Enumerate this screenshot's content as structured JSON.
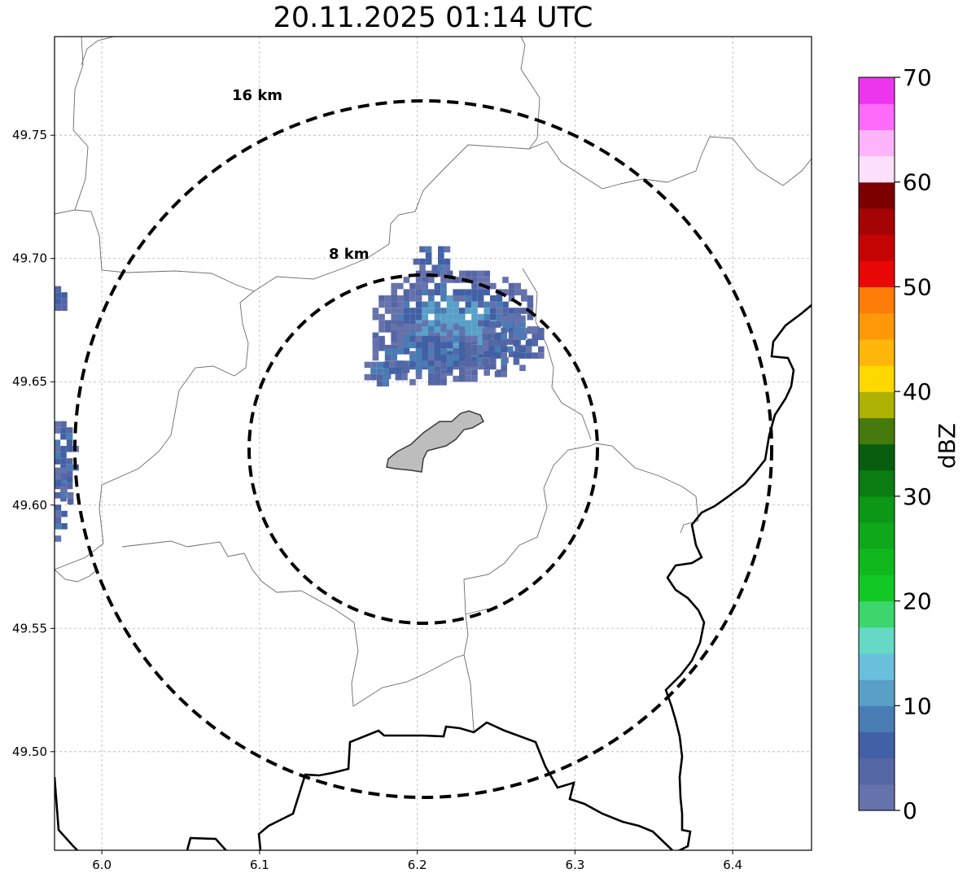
{
  "title": "20.11.2025 01:14 UTC",
  "map": {
    "lon_range": [
      5.97,
      6.45
    ],
    "lat_range": [
      49.46,
      49.79
    ],
    "grid": true,
    "x_ticks": [
      {
        "value": 6.0,
        "label": "6.0"
      },
      {
        "value": 6.1,
        "label": "6.1"
      },
      {
        "value": 6.2,
        "label": "6.2"
      },
      {
        "value": 6.3,
        "label": "6.3"
      },
      {
        "value": 6.4,
        "label": "6.4"
      }
    ],
    "y_ticks": [
      {
        "value": 49.5,
        "label": "49.50"
      },
      {
        "value": 49.55,
        "label": "49.55"
      },
      {
        "value": 49.6,
        "label": "49.60"
      },
      {
        "value": 49.65,
        "label": "49.65"
      },
      {
        "value": 49.7,
        "label": "49.70"
      },
      {
        "value": 49.75,
        "label": "49.75"
      }
    ],
    "rings": [
      {
        "radius_km": 8,
        "label": "8 km"
      },
      {
        "radius_km": 16,
        "label": "16 km"
      }
    ]
  },
  "colorbar": {
    "label": "dBZ",
    "ticks": [
      "0",
      "10",
      "20",
      "30",
      "40",
      "50",
      "60",
      "70"
    ],
    "colors": [
      "#6672ac",
      "#5566a5",
      "#4260a5",
      "#4a7cb4",
      "#58a0c8",
      "#68c0dc",
      "#66d8c6",
      "#3cd66c",
      "#12c824",
      "#10b81e",
      "#0ea81a",
      "#0c9816",
      "#0a7c12",
      "#085e0e",
      "#467a0c",
      "#aeb204",
      "#fed800",
      "#feb60a",
      "#fe9808",
      "#fe7c08",
      "#e80806",
      "#c60404",
      "#a40404",
      "#7c0000",
      "#fee0fc",
      "#feb4fa",
      "#fe6afa",
      "#ec36ee"
    ]
  }
}
